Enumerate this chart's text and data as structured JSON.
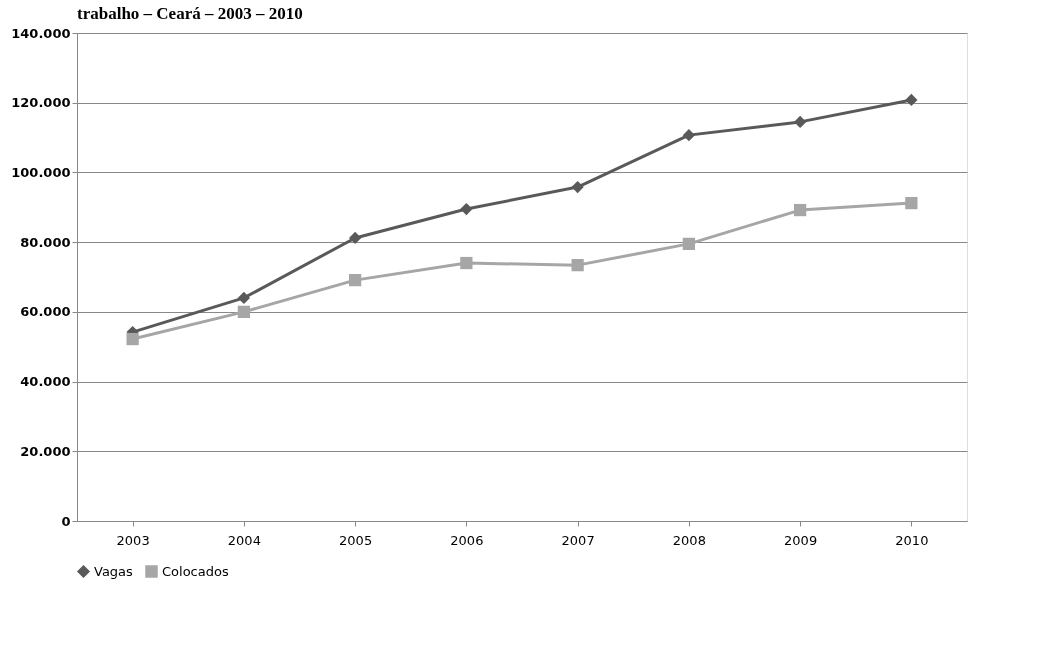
{
  "chart_data": {
    "type": "line",
    "title": "trabalho – Ceará – 2003 – 2010",
    "categories": [
      "2003",
      "2004",
      "2005",
      "2006",
      "2007",
      "2008",
      "2009",
      "2010"
    ],
    "series": [
      {
        "name": "Vagas",
        "color": "#595959",
        "marker": "diamond",
        "values": [
          54200,
          64000,
          81200,
          89500,
          95800,
          110700,
          114500,
          120800
        ]
      },
      {
        "name": "Colocados",
        "color": "#a6a6a6",
        "marker": "square",
        "values": [
          52200,
          60000,
          69100,
          74000,
          73400,
          79500,
          89200,
          91200
        ]
      }
    ],
    "ylim": [
      0,
      140000
    ],
    "yticks": [
      0,
      {
        "value": 20000,
        "label": "20.000"
      },
      {
        "value": 40000,
        "label": "40.000"
      },
      {
        "value": 60000,
        "label": "60.000"
      },
      {
        "value": 80000,
        "label": "80.000"
      },
      {
        "value": 100000,
        "label": "100.000"
      },
      {
        "value": 120000,
        "label": "120.000"
      },
      {
        "value": 140000,
        "label": "140.000"
      }
    ],
    "grid": "y",
    "legend": "bottom",
    "line_style": "solid"
  }
}
